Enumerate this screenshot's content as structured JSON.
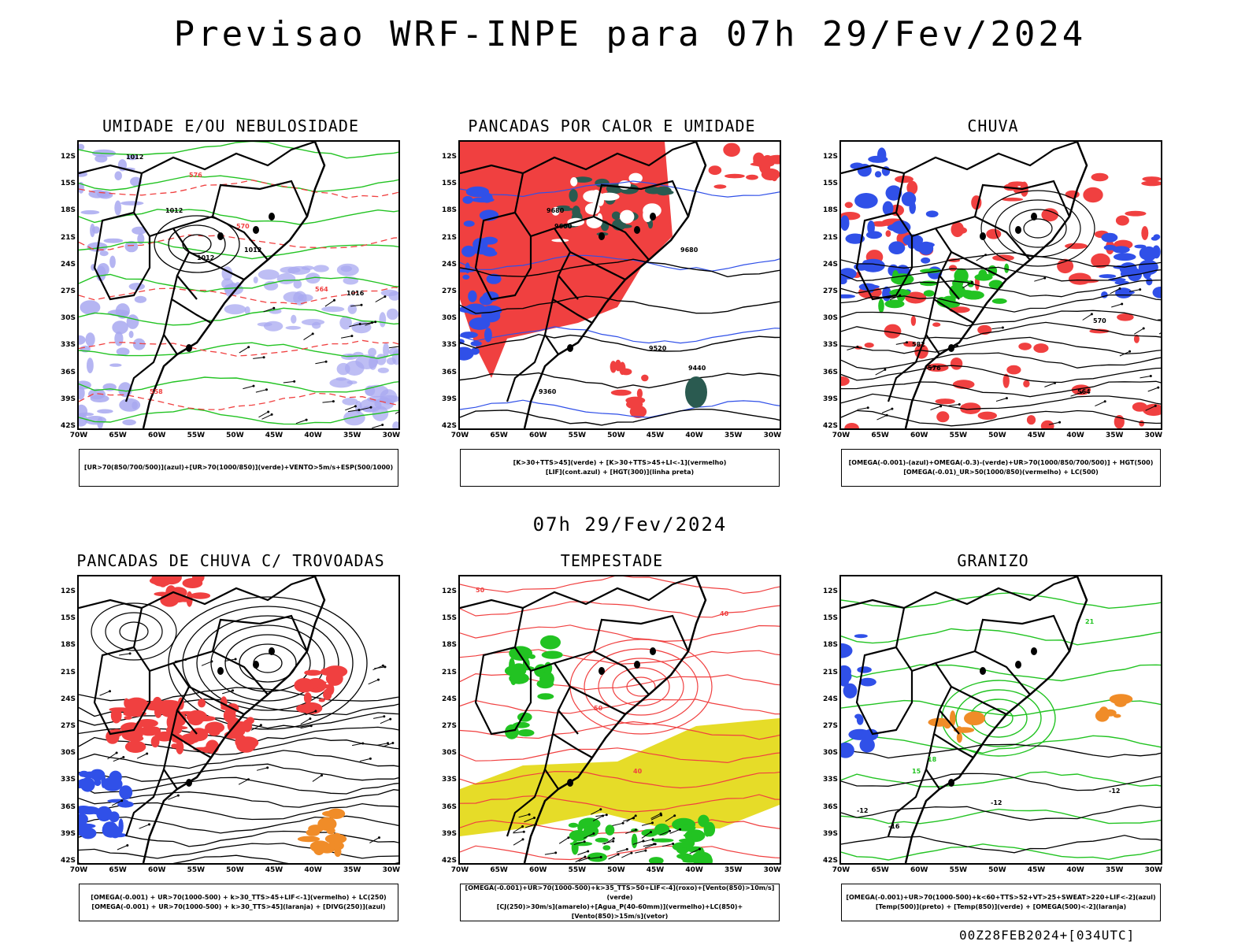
{
  "main_title": "Previsao WRF-INPE  para 07h 29/Fev/2024",
  "mid_title": "07h 29/Fev/2024",
  "footer": "00Z28FEB2024+[034UTC]",
  "axis": {
    "lat": [
      "12S",
      "15S",
      "18S",
      "21S",
      "24S",
      "27S",
      "30S",
      "33S",
      "36S",
      "39S",
      "42S"
    ],
    "lon": [
      "70W",
      "65W",
      "60W",
      "55W",
      "50W",
      "45W",
      "40W",
      "35W",
      "30W"
    ]
  },
  "colors": {
    "green": "#22c322",
    "red": "#f04040",
    "blue": "#3050e8",
    "lavender": "#a8a8f0",
    "yellow": "#e6dc28",
    "orange": "#f08c28",
    "darkgreen": "#2a5a50",
    "black": "#000000"
  },
  "panels": [
    {
      "title": "UMIDADE E/OU NEBULOSIDADE",
      "legend": [
        "[UR>70(850/700/500)](azul)+[UR>70(1000/850)](verde)+VENTO>5m/s+ESP(500/1000)"
      ],
      "contour_labels": [
        "1012",
        "1012",
        "1012",
        "1012",
        "1016",
        "576",
        "570",
        "564",
        "558"
      ]
    },
    {
      "title": "PANCADAS POR CALOR E UMIDADE",
      "legend": [
        "[K>30+TTS>45](verde)  +  [K>30+TTS>45+LI<-1](vermelho)",
        "[LIF](cont.azul)  +  [HGT(300)](linha preta)"
      ],
      "contour_labels": [
        "9680",
        "9680",
        "9600",
        "9520",
        "9440",
        "9360"
      ]
    },
    {
      "title": "CHUVA",
      "legend": [
        "[OMEGA(-0.001)-(azul)+OMEGA(-0.3)-(verde)+UR>70(1000/850/700/500)]  +  HGT(500)",
        "[OMEGA(-0.01)_UR>50(1000/850)(vermelho)  +  LC(500)"
      ],
      "contour_labels": [
        "582",
        "576",
        "570",
        "564"
      ]
    },
    {
      "title": "PANCADAS DE CHUVA C/ TROVOADAS",
      "legend": [
        "[OMEGA(-0.001)  +  UR>70(1000-500)  +  k>30_TTS>45+LIF<-1](vermelho)  +  LC(250)",
        "[OMEGA(-0.001)  +  UR>70(1000-500)  +  k>30_TTS>45](laranja)  +  [DIVG(250)](azul)"
      ],
      "contour_labels": []
    },
    {
      "title": "TEMPESTADE",
      "legend": [
        "[OMEGA(-0.001)+UR>70(1000-500)+k>35_TTS>50+LIF<-4](roxo)+[Vento(850)>10m/s](verde)",
        "[CJ(250)>30m/s](amarelo)+[Agua_P(40-60mm)](vermelho)+LC(850)+[Vento(850)>15m/s](vetor)"
      ],
      "contour_labels": [
        "50",
        "40",
        "50",
        "40"
      ]
    },
    {
      "title": "GRANIZO",
      "legend": [
        "[OMEGA(-0.001)+UR>70(1000-500)+k<60+TTS>52+VT>25+SWEAT>220+LIF<-2](azul)",
        "[Temp(500)](preto)  +  [Temp(850)](verde)  +  [OMEGA(500)<-2](laranja)"
      ],
      "contour_labels": [
        "-12",
        "-12",
        "-12",
        "-16",
        "15",
        "18",
        "21"
      ]
    }
  ]
}
